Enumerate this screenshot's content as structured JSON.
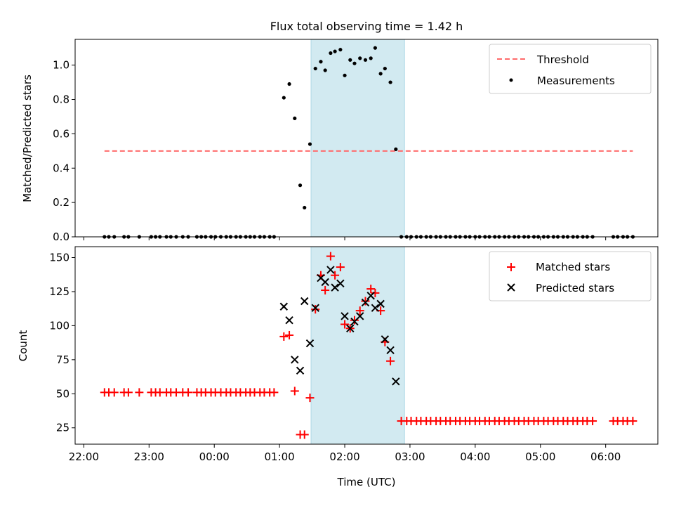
{
  "chart_data": [
    {
      "type": "scatter",
      "title": "Flux total observing time = 1.42 h",
      "xlabel": "",
      "ylabel": "Matched/Predicted stars",
      "ylim": [
        0,
        1.15
      ],
      "yticks": [
        0.0,
        0.2,
        0.4,
        0.6,
        0.8,
        1.0
      ],
      "ytick_labels": [
        "0.0",
        "0.2",
        "0.4",
        "0.6",
        "0.8",
        "1.0"
      ],
      "xlim": [
        "21:52",
        "06:48"
      ],
      "xticks": [
        "22:00",
        "23:00",
        "00:00",
        "01:00",
        "02:00",
        "03:00",
        "04:00",
        "05:00",
        "06:00"
      ],
      "shaded_span": [
        "01:29",
        "02:55"
      ],
      "shaded_color": "#add8e6",
      "legend_position": "upper right",
      "series": [
        {
          "name": "Threshold",
          "kind": "dashed-line",
          "color": "#ff6b6b",
          "points": [
            [
              "22:19",
              0.5
            ],
            [
              "06:25",
              0.5
            ]
          ]
        },
        {
          "name": "Measurements",
          "kind": "dot",
          "color": "#000000",
          "points": [
            [
              "22:19",
              0.0
            ],
            [
              "22:23",
              0.0
            ],
            [
              "22:28",
              0.0
            ],
            [
              "22:37",
              0.0
            ],
            [
              "22:41",
              0.0
            ],
            [
              "22:51",
              0.0
            ],
            [
              "23:02",
              0.0
            ],
            [
              "23:06",
              0.0
            ],
            [
              "23:10",
              0.0
            ],
            [
              "23:16",
              0.0
            ],
            [
              "23:20",
              0.0
            ],
            [
              "23:25",
              0.0
            ],
            [
              "23:31",
              0.0
            ],
            [
              "23:36",
              0.0
            ],
            [
              "23:44",
              0.0
            ],
            [
              "23:48",
              0.0
            ],
            [
              "23:52",
              0.0
            ],
            [
              "23:57",
              0.0
            ],
            [
              "00:01",
              0.0
            ],
            [
              "00:06",
              0.0
            ],
            [
              "00:11",
              0.0
            ],
            [
              "00:15",
              0.0
            ],
            [
              "00:20",
              0.0
            ],
            [
              "00:24",
              0.0
            ],
            [
              "00:29",
              0.0
            ],
            [
              "00:33",
              0.0
            ],
            [
              "00:37",
              0.0
            ],
            [
              "00:42",
              0.0
            ],
            [
              "00:46",
              0.0
            ],
            [
              "00:51",
              0.0
            ],
            [
              "00:55",
              0.0
            ],
            [
              "01:04",
              0.81
            ],
            [
              "01:09",
              0.89
            ],
            [
              "01:14",
              0.69
            ],
            [
              "01:19",
              0.3
            ],
            [
              "01:23",
              0.17
            ],
            [
              "01:28",
              0.54
            ],
            [
              "01:33",
              0.98
            ],
            [
              "01:38",
              1.02
            ],
            [
              "01:42",
              0.97
            ],
            [
              "01:47",
              1.07
            ],
            [
              "01:51",
              1.08
            ],
            [
              "01:56",
              1.09
            ],
            [
              "02:00",
              0.94
            ],
            [
              "02:05",
              1.03
            ],
            [
              "02:09",
              1.01
            ],
            [
              "02:14",
              1.04
            ],
            [
              "02:19",
              1.03
            ],
            [
              "02:24",
              1.04
            ],
            [
              "02:28",
              1.1
            ],
            [
              "02:33",
              0.95
            ],
            [
              "02:37",
              0.98
            ],
            [
              "02:42",
              0.9
            ],
            [
              "02:47",
              0.51
            ],
            [
              "02:52",
              0.0
            ],
            [
              "02:57",
              0.0
            ],
            [
              "03:01",
              0.0
            ],
            [
              "03:06",
              0.0
            ],
            [
              "03:10",
              0.0
            ],
            [
              "03:15",
              0.0
            ],
            [
              "03:19",
              0.0
            ],
            [
              "03:24",
              0.0
            ],
            [
              "03:28",
              0.0
            ],
            [
              "03:33",
              0.0
            ],
            [
              "03:37",
              0.0
            ],
            [
              "03:42",
              0.0
            ],
            [
              "03:46",
              0.0
            ],
            [
              "03:51",
              0.0
            ],
            [
              "03:55",
              0.0
            ],
            [
              "04:00",
              0.0
            ],
            [
              "04:04",
              0.0
            ],
            [
              "04:09",
              0.0
            ],
            [
              "04:13",
              0.0
            ],
            [
              "04:18",
              0.0
            ],
            [
              "04:22",
              0.0
            ],
            [
              "04:27",
              0.0
            ],
            [
              "04:31",
              0.0
            ],
            [
              "04:36",
              0.0
            ],
            [
              "04:40",
              0.0
            ],
            [
              "04:45",
              0.0
            ],
            [
              "04:49",
              0.0
            ],
            [
              "04:54",
              0.0
            ],
            [
              "04:58",
              0.0
            ],
            [
              "05:03",
              0.0
            ],
            [
              "05:07",
              0.0
            ],
            [
              "05:12",
              0.0
            ],
            [
              "05:16",
              0.0
            ],
            [
              "05:21",
              0.0
            ],
            [
              "05:25",
              0.0
            ],
            [
              "05:30",
              0.0
            ],
            [
              "05:34",
              0.0
            ],
            [
              "05:39",
              0.0
            ],
            [
              "05:43",
              0.0
            ],
            [
              "05:48",
              0.0
            ],
            [
              "06:07",
              0.0
            ],
            [
              "06:11",
              0.0
            ],
            [
              "06:16",
              0.0
            ],
            [
              "06:20",
              0.0
            ],
            [
              "06:25",
              0.0
            ]
          ]
        }
      ]
    },
    {
      "type": "scatter",
      "title": "",
      "xlabel": "Time (UTC)",
      "ylabel": "Count",
      "ylim": [
        13,
        158
      ],
      "yticks": [
        25,
        50,
        75,
        100,
        125,
        150
      ],
      "ytick_labels": [
        "25",
        "50",
        "75",
        "100",
        "125",
        "150"
      ],
      "xlim": [
        "21:52",
        "06:48"
      ],
      "xticks": [
        "22:00",
        "23:00",
        "00:00",
        "01:00",
        "02:00",
        "03:00",
        "04:00",
        "05:00",
        "06:00"
      ],
      "xtick_labels": [
        "22:00",
        "23:00",
        "00:00",
        "01:00",
        "02:00",
        "03:00",
        "04:00",
        "05:00",
        "06:00"
      ],
      "shaded_span": [
        "01:29",
        "02:55"
      ],
      "shaded_color": "#add8e6",
      "legend_position": "upper right",
      "series": [
        {
          "name": "Matched stars",
          "kind": "plus",
          "color": "#ff0000",
          "points": [
            [
              "22:19",
              51
            ],
            [
              "22:23",
              51
            ],
            [
              "22:28",
              51
            ],
            [
              "22:37",
              51
            ],
            [
              "22:41",
              51
            ],
            [
              "22:51",
              51
            ],
            [
              "23:02",
              51
            ],
            [
              "23:06",
              51
            ],
            [
              "23:10",
              51
            ],
            [
              "23:16",
              51
            ],
            [
              "23:20",
              51
            ],
            [
              "23:25",
              51
            ],
            [
              "23:31",
              51
            ],
            [
              "23:36",
              51
            ],
            [
              "23:44",
              51
            ],
            [
              "23:48",
              51
            ],
            [
              "23:52",
              51
            ],
            [
              "23:57",
              51
            ],
            [
              "00:01",
              51
            ],
            [
              "00:06",
              51
            ],
            [
              "00:11",
              51
            ],
            [
              "00:15",
              51
            ],
            [
              "00:20",
              51
            ],
            [
              "00:24",
              51
            ],
            [
              "00:29",
              51
            ],
            [
              "00:33",
              51
            ],
            [
              "00:37",
              51
            ],
            [
              "00:42",
              51
            ],
            [
              "00:46",
              51
            ],
            [
              "00:51",
              51
            ],
            [
              "00:55",
              51
            ],
            [
              "01:04",
              92
            ],
            [
              "01:09",
              93
            ],
            [
              "01:14",
              52
            ],
            [
              "01:19",
              20
            ],
            [
              "01:23",
              20
            ],
            [
              "01:28",
              47
            ],
            [
              "01:33",
              112
            ],
            [
              "01:38",
              137
            ],
            [
              "01:42",
              126
            ],
            [
              "01:47",
              151
            ],
            [
              "01:51",
              137
            ],
            [
              "01:56",
              143
            ],
            [
              "02:00",
              101
            ],
            [
              "02:05",
              98
            ],
            [
              "02:09",
              104
            ],
            [
              "02:14",
              111
            ],
            [
              "02:19",
              118
            ],
            [
              "02:24",
              127
            ],
            [
              "02:28",
              124
            ],
            [
              "02:33",
              111
            ],
            [
              "02:37",
              88
            ],
            [
              "02:42",
              74
            ],
            [
              "02:52",
              30
            ],
            [
              "02:57",
              30
            ],
            [
              "03:01",
              30
            ],
            [
              "03:06",
              30
            ],
            [
              "03:10",
              30
            ],
            [
              "03:15",
              30
            ],
            [
              "03:19",
              30
            ],
            [
              "03:24",
              30
            ],
            [
              "03:28",
              30
            ],
            [
              "03:33",
              30
            ],
            [
              "03:37",
              30
            ],
            [
              "03:42",
              30
            ],
            [
              "03:46",
              30
            ],
            [
              "03:51",
              30
            ],
            [
              "03:55",
              30
            ],
            [
              "04:00",
              30
            ],
            [
              "04:04",
              30
            ],
            [
              "04:09",
              30
            ],
            [
              "04:13",
              30
            ],
            [
              "04:18",
              30
            ],
            [
              "04:22",
              30
            ],
            [
              "04:27",
              30
            ],
            [
              "04:31",
              30
            ],
            [
              "04:36",
              30
            ],
            [
              "04:40",
              30
            ],
            [
              "04:45",
              30
            ],
            [
              "04:49",
              30
            ],
            [
              "04:54",
              30
            ],
            [
              "04:58",
              30
            ],
            [
              "05:03",
              30
            ],
            [
              "05:07",
              30
            ],
            [
              "05:12",
              30
            ],
            [
              "05:16",
              30
            ],
            [
              "05:21",
              30
            ],
            [
              "05:25",
              30
            ],
            [
              "05:30",
              30
            ],
            [
              "05:34",
              30
            ],
            [
              "05:39",
              30
            ],
            [
              "05:43",
              30
            ],
            [
              "05:48",
              30
            ],
            [
              "06:07",
              30
            ],
            [
              "06:11",
              30
            ],
            [
              "06:16",
              30
            ],
            [
              "06:20",
              30
            ],
            [
              "06:25",
              30
            ]
          ]
        },
        {
          "name": "Predicted stars",
          "kind": "cross",
          "color": "#000000",
          "points": [
            [
              "01:04",
              114
            ],
            [
              "01:09",
              104
            ],
            [
              "01:14",
              75
            ],
            [
              "01:19",
              67
            ],
            [
              "01:23",
              118
            ],
            [
              "01:28",
              87
            ],
            [
              "01:33",
              113
            ],
            [
              "01:38",
              135
            ],
            [
              "01:42",
              132
            ],
            [
              "01:47",
              141
            ],
            [
              "01:51",
              128
            ],
            [
              "01:56",
              131
            ],
            [
              "02:00",
              107
            ],
            [
              "02:05",
              98
            ],
            [
              "02:09",
              103
            ],
            [
              "02:14",
              107
            ],
            [
              "02:19",
              117
            ],
            [
              "02:24",
              122
            ],
            [
              "02:28",
              113
            ],
            [
              "02:33",
              116
            ],
            [
              "02:37",
              90
            ],
            [
              "02:42",
              82
            ],
            [
              "02:47",
              59
            ]
          ]
        }
      ]
    }
  ]
}
